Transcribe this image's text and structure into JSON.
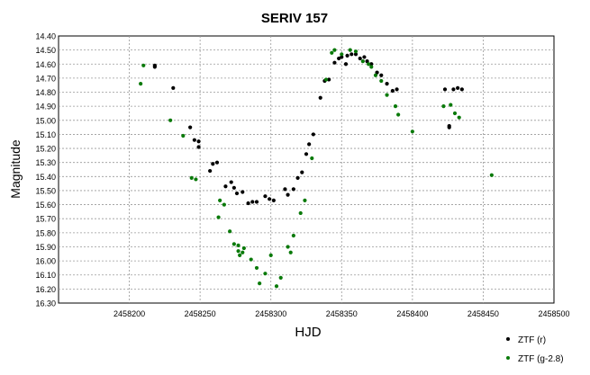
{
  "chart_data": {
    "type": "scatter",
    "title": "SERIV 157",
    "xlabel": "HJD",
    "ylabel": "Magnitude",
    "xlim": [
      2458150,
      2458500
    ],
    "ylim": [
      14.4,
      16.3
    ],
    "y_inverted": true,
    "grid": true,
    "legend_position": "bottom-right",
    "x_ticks": [
      "2458200",
      "2458250",
      "2458300",
      "2458350",
      "2458400",
      "2458450",
      "2458500"
    ],
    "y_ticks": [
      "14.40",
      "14.50",
      "14.60",
      "14.70",
      "14.80",
      "14.90",
      "15.00",
      "15.10",
      "15.20",
      "15.30",
      "15.40",
      "15.50",
      "15.60",
      "15.70",
      "15.80",
      "15.90",
      "16.00",
      "16.10",
      "16.20",
      "16.30"
    ],
    "series": [
      {
        "name": "ZTF (r)",
        "color": "#000000",
        "points": [
          [
            2458218,
            14.61
          ],
          [
            2458218,
            14.62
          ],
          [
            2458231,
            14.77
          ],
          [
            2458243,
            15.05
          ],
          [
            2458246,
            15.14
          ],
          [
            2458249,
            15.15
          ],
          [
            2458249,
            15.19
          ],
          [
            2458257,
            15.36
          ],
          [
            2458259,
            15.31
          ],
          [
            2458262,
            15.3
          ],
          [
            2458268,
            15.47
          ],
          [
            2458272,
            15.44
          ],
          [
            2458274,
            15.48
          ],
          [
            2458276,
            15.52
          ],
          [
            2458280,
            15.51
          ],
          [
            2458284,
            15.59
          ],
          [
            2458287,
            15.58
          ],
          [
            2458290,
            15.58
          ],
          [
            2458296,
            15.54
          ],
          [
            2458299,
            15.56
          ],
          [
            2458302,
            15.57
          ],
          [
            2458310,
            15.49
          ],
          [
            2458312,
            15.53
          ],
          [
            2458316,
            15.49
          ],
          [
            2458319,
            15.41
          ],
          [
            2458322,
            15.37
          ],
          [
            2458325,
            15.24
          ],
          [
            2458327,
            15.17
          ],
          [
            2458330,
            15.1
          ],
          [
            2458335,
            14.84
          ],
          [
            2458338,
            14.72
          ],
          [
            2458341,
            14.71
          ],
          [
            2458345,
            14.59
          ],
          [
            2458348,
            14.56
          ],
          [
            2458350,
            14.55
          ],
          [
            2458353,
            14.6
          ],
          [
            2458354,
            14.54
          ],
          [
            2458357,
            14.53
          ],
          [
            2458360,
            14.53
          ],
          [
            2458363,
            14.56
          ],
          [
            2458366,
            14.55
          ],
          [
            2458368,
            14.58
          ],
          [
            2458371,
            14.6
          ],
          [
            2458375,
            14.66
          ],
          [
            2458378,
            14.68
          ],
          [
            2458382,
            14.74
          ],
          [
            2458386,
            14.79
          ],
          [
            2458389,
            14.78
          ],
          [
            2458423,
            14.78
          ],
          [
            2458426,
            15.04
          ],
          [
            2458426,
            15.05
          ],
          [
            2458429,
            14.78
          ],
          [
            2458432,
            14.77
          ],
          [
            2458435,
            14.78
          ]
        ]
      },
      {
        "name": "ZTF (g-2.8)",
        "color": "#0a7a0a",
        "points": [
          [
            2458208,
            14.74
          ],
          [
            2458210,
            14.61
          ],
          [
            2458229,
            15.0
          ],
          [
            2458238,
            15.11
          ],
          [
            2458244,
            15.41
          ],
          [
            2458247,
            15.42
          ],
          [
            2458263,
            15.69
          ],
          [
            2458264,
            15.57
          ],
          [
            2458267,
            15.6
          ],
          [
            2458271,
            15.79
          ],
          [
            2458274,
            15.88
          ],
          [
            2458277,
            15.89
          ],
          [
            2458277,
            15.93
          ],
          [
            2458278,
            15.96
          ],
          [
            2458280,
            15.94
          ],
          [
            2458281,
            15.91
          ],
          [
            2458286,
            15.99
          ],
          [
            2458290,
            16.05
          ],
          [
            2458292,
            16.16
          ],
          [
            2458296,
            16.09
          ],
          [
            2458300,
            15.96
          ],
          [
            2458304,
            16.18
          ],
          [
            2458307,
            16.12
          ],
          [
            2458312,
            15.9
          ],
          [
            2458314,
            15.94
          ],
          [
            2458316,
            15.82
          ],
          [
            2458321,
            15.66
          ],
          [
            2458324,
            15.57
          ],
          [
            2458329,
            15.27
          ],
          [
            2458339,
            14.71
          ],
          [
            2458343,
            14.52
          ],
          [
            2458345,
            14.5
          ],
          [
            2458350,
            14.53
          ],
          [
            2458356,
            14.5
          ],
          [
            2458360,
            14.51
          ],
          [
            2458365,
            14.58
          ],
          [
            2458369,
            14.6
          ],
          [
            2458371,
            14.62
          ],
          [
            2458374,
            14.68
          ],
          [
            2458378,
            14.72
          ],
          [
            2458382,
            14.82
          ],
          [
            2458388,
            14.9
          ],
          [
            2458390,
            14.96
          ],
          [
            2458400,
            15.08
          ],
          [
            2458422,
            14.9
          ],
          [
            2458427,
            14.89
          ],
          [
            2458430,
            14.95
          ],
          [
            2458433,
            14.98
          ],
          [
            2458456,
            15.39
          ]
        ]
      }
    ]
  }
}
